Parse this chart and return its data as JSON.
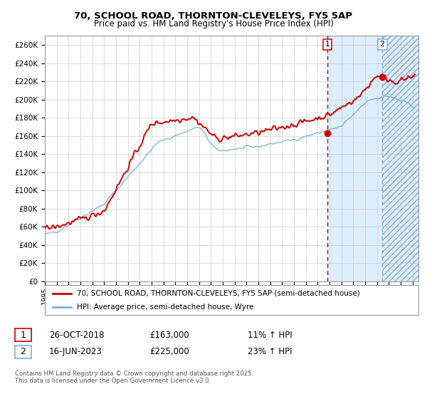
{
  "title_line1": "70, SCHOOL ROAD, THORNTON-CLEVELEYS, FY5 5AP",
  "title_line2": "Price paid vs. HM Land Registry's House Price Index (HPI)",
  "ylabel_ticks": [
    "£0",
    "£20K",
    "£40K",
    "£60K",
    "£80K",
    "£100K",
    "£120K",
    "£140K",
    "£160K",
    "£180K",
    "£200K",
    "£220K",
    "£240K",
    "£260K"
  ],
  "ytick_values": [
    0,
    20000,
    40000,
    60000,
    80000,
    100000,
    120000,
    140000,
    160000,
    180000,
    200000,
    220000,
    240000,
    260000
  ],
  "ylim": [
    0,
    270000
  ],
  "xlim_start": 1995.0,
  "xlim_end": 2026.5,
  "xtick_years": [
    1995,
    1996,
    1997,
    1998,
    1999,
    2000,
    2001,
    2002,
    2003,
    2004,
    2005,
    2006,
    2007,
    2008,
    2009,
    2010,
    2011,
    2012,
    2013,
    2014,
    2015,
    2016,
    2017,
    2018,
    2019,
    2020,
    2021,
    2022,
    2023,
    2024,
    2025,
    2026
  ],
  "sale1_year": 2018.82,
  "sale1_price": 163000,
  "sale2_year": 2023.45,
  "sale2_price": 225000,
  "hpi_color": "#7bafd4",
  "price_color": "#cc0000",
  "marker_color": "#cc0000",
  "vline1_color": "#cc0000",
  "vline2_color": "#7bafd4",
  "shade_color": "#ddeeff",
  "grid_color": "#cccccc",
  "bg_color": "#ffffff",
  "legend1_label": "70, SCHOOL ROAD, THORNTON-CLEVELEYS, FY5 5AP (semi-detached house)",
  "legend2_label": "HPI: Average price, semi-detached house, Wyre",
  "footnote": "Contains HM Land Registry data © Crown copyright and database right 2025.\nThis data is licensed under the Open Government Licence v3.0.",
  "table_row1": [
    "1",
    "26-OCT-2018",
    "£163,000",
    "11% ↑ HPI"
  ],
  "table_row2": [
    "2",
    "16-JUN-2023",
    "£225,000",
    "23% ↑ HPI"
  ]
}
